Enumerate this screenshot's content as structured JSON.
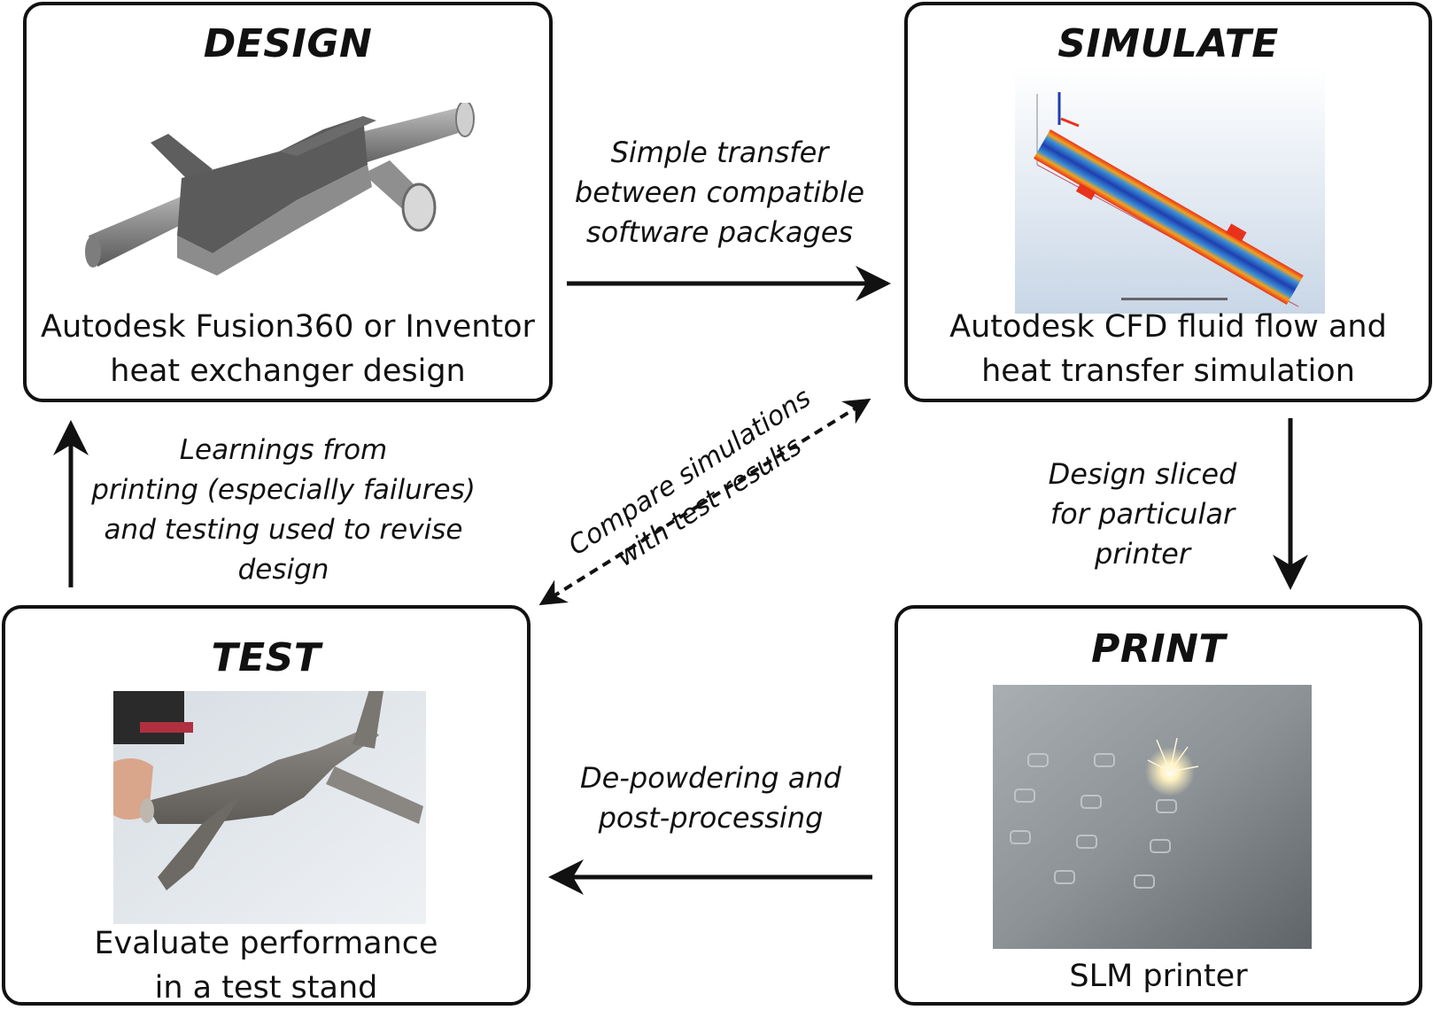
{
  "boxes": {
    "design": {
      "title": "DESIGN",
      "caption": [
        "Autodesk Fusion360 or Inventor",
        "heat exchanger design"
      ]
    },
    "simulate": {
      "title": "SIMULATE",
      "caption": [
        "Autodesk CFD fluid flow and",
        "heat transfer simulation"
      ]
    },
    "print": {
      "title": "PRINT",
      "caption": [
        "SLM printer"
      ]
    },
    "test": {
      "title": "TEST",
      "caption": [
        "Evaluate performance",
        "in a test stand"
      ]
    }
  },
  "arrows": {
    "design_to_simulate": [
      "Simple transfer",
      "between compatible",
      "software packages"
    ],
    "simulate_to_print": [
      "Design sliced",
      "for particular",
      "printer"
    ],
    "print_to_test": [
      "De-powdering and",
      "post-processing"
    ],
    "test_to_design": [
      "Learnings from",
      "printing (especially failures)",
      "and testing used to revise",
      "design"
    ],
    "compare": [
      "Compare simulations",
      "with test results"
    ]
  },
  "colors": {
    "stroke": "#111111",
    "cfd_hot": "#e8321c",
    "cfd_warm": "#f2a21e",
    "cfd_cool": "#1f3fb0",
    "metal": "#6f6f6f"
  }
}
